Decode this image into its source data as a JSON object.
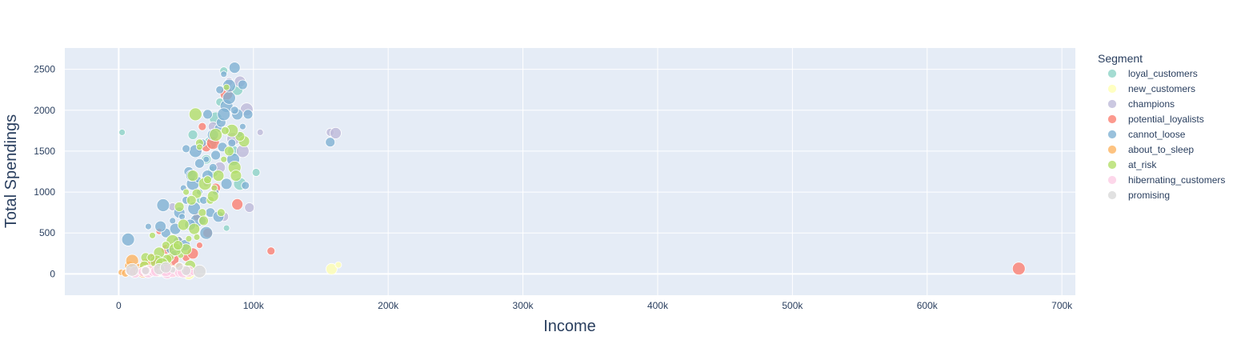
{
  "chart_data": {
    "type": "scatter",
    "title": "",
    "xlabel": "Income",
    "ylabel": "Total Spendings",
    "xlim": [
      -40000,
      710000
    ],
    "ylim": [
      -260,
      2760
    ],
    "x_ticks": [
      0,
      100000,
      200000,
      300000,
      400000,
      500000,
      600000,
      700000
    ],
    "x_tick_labels": [
      "0",
      "100k",
      "200k",
      "300k",
      "400k",
      "500k",
      "600k",
      "700k"
    ],
    "y_ticks": [
      0,
      500,
      1000,
      1500,
      2000,
      2500
    ],
    "y_tick_labels": [
      "0",
      "500",
      "1000",
      "1500",
      "2000",
      "2500"
    ],
    "grid": true,
    "plot_background": "#e5ecf6",
    "legend": {
      "title": "Segment",
      "placement": "right"
    },
    "series": [
      {
        "name": "loyal_customers",
        "color": "#8dd3c7",
        "points": [
          [
            2500,
            1730
          ],
          [
            65000,
            1400
          ],
          [
            72000,
            1900
          ],
          [
            78000,
            2480
          ],
          [
            85000,
            1500
          ],
          [
            60000,
            900
          ],
          [
            55000,
            1700
          ],
          [
            90000,
            1100
          ],
          [
            102000,
            1240
          ],
          [
            70000,
            1250
          ],
          [
            80000,
            560
          ],
          [
            45000,
            300
          ],
          [
            68000,
            1600
          ],
          [
            75000,
            2100
          ],
          [
            88000,
            2250
          ]
        ]
      },
      {
        "name": "new_customers",
        "color": "#ffffb3",
        "points": [
          [
            158000,
            60
          ],
          [
            163000,
            110
          ],
          [
            40000,
            20
          ],
          [
            52000,
            10
          ],
          [
            30000,
            15
          ]
        ]
      },
      {
        "name": "champions",
        "color": "#bebada",
        "points": [
          [
            157000,
            1730
          ],
          [
            161000,
            1720
          ],
          [
            105000,
            1730
          ],
          [
            97000,
            810
          ],
          [
            95000,
            2010
          ],
          [
            82000,
            2350
          ],
          [
            90000,
            2350
          ],
          [
            60000,
            1520
          ],
          [
            70000,
            1800
          ],
          [
            85000,
            1650
          ],
          [
            40000,
            820
          ],
          [
            75000,
            1300
          ],
          [
            65000,
            1100
          ],
          [
            78000,
            700
          ],
          [
            92000,
            1500
          ]
        ]
      },
      {
        "name": "potential_loyalists",
        "color": "#fb8072",
        "points": [
          [
            668000,
            65
          ],
          [
            113000,
            280
          ],
          [
            88000,
            850
          ],
          [
            30000,
            520
          ],
          [
            35000,
            300
          ],
          [
            40000,
            180
          ],
          [
            50000,
            200
          ],
          [
            55000,
            250
          ],
          [
            60000,
            350
          ],
          [
            65000,
            1550
          ],
          [
            70000,
            1600
          ],
          [
            62000,
            1800
          ],
          [
            28000,
            100
          ],
          [
            45000,
            420
          ],
          [
            72000,
            1050
          ],
          [
            80000,
            2200
          ],
          [
            58000,
            700
          ],
          [
            25000,
            180
          ],
          [
            48000,
            80
          ],
          [
            66000,
            500
          ]
        ]
      },
      {
        "name": "cannot_loose",
        "color": "#80b1d3",
        "points": [
          [
            157000,
            1610
          ],
          [
            7000,
            420
          ],
          [
            94000,
            1080
          ],
          [
            86000,
            2520
          ],
          [
            78000,
            2440
          ],
          [
            92000,
            2310
          ],
          [
            80000,
            2050
          ],
          [
            74000,
            1780
          ],
          [
            70000,
            1700
          ],
          [
            65000,
            1400
          ],
          [
            60000,
            1350
          ],
          [
            55000,
            1100
          ],
          [
            50000,
            900
          ],
          [
            45000,
            750
          ],
          [
            40000,
            650
          ],
          [
            35000,
            500
          ],
          [
            33000,
            840
          ],
          [
            38000,
            300
          ],
          [
            42000,
            550
          ],
          [
            48000,
            1050
          ],
          [
            52000,
            1250
          ],
          [
            57000,
            1500
          ],
          [
            62000,
            1600
          ],
          [
            66000,
            1200
          ],
          [
            72000,
            1000
          ],
          [
            76000,
            1850
          ],
          [
            82000,
            2150
          ],
          [
            84000,
            1600
          ],
          [
            88000,
            1950
          ],
          [
            90000,
            1700
          ],
          [
            68000,
            750
          ],
          [
            58000,
            650
          ],
          [
            63000,
            900
          ],
          [
            53000,
            600
          ],
          [
            47000,
            700
          ],
          [
            72000,
            1450
          ],
          [
            78000,
            1950
          ],
          [
            86000,
            2000
          ],
          [
            80000,
            1100
          ],
          [
            60000,
            1000
          ],
          [
            44000,
            400
          ],
          [
            56000,
            800
          ],
          [
            70000,
            1300
          ],
          [
            74000,
            700
          ],
          [
            92000,
            1800
          ],
          [
            96000,
            1950
          ],
          [
            65000,
            500
          ],
          [
            50000,
            1530
          ],
          [
            31000,
            580
          ],
          [
            22000,
            580
          ],
          [
            66000,
            1950
          ],
          [
            82000,
            2300
          ],
          [
            75000,
            2250
          ],
          [
            54000,
            1200
          ],
          [
            59000,
            1150
          ],
          [
            77000,
            1550
          ],
          [
            85000,
            1400
          ],
          [
            62000,
            650
          ],
          [
            49000,
            350
          ],
          [
            41000,
            250
          ]
        ]
      },
      {
        "name": "about_to_sleep",
        "color": "#fdb462",
        "points": [
          [
            2000,
            20
          ],
          [
            8000,
            100
          ],
          [
            10000,
            160
          ],
          [
            15000,
            80
          ],
          [
            20000,
            120
          ],
          [
            25000,
            60
          ],
          [
            30000,
            40
          ],
          [
            35000,
            90
          ],
          [
            40000,
            30
          ],
          [
            45000,
            70
          ],
          [
            50000,
            50
          ],
          [
            12000,
            40
          ],
          [
            18000,
            30
          ],
          [
            5000,
            10
          ]
        ]
      },
      {
        "name": "at_risk",
        "color": "#b3de69",
        "points": [
          [
            93000,
            1620
          ],
          [
            80000,
            2280
          ],
          [
            90000,
            1680
          ],
          [
            72000,
            1700
          ],
          [
            60000,
            1600
          ],
          [
            55000,
            1200
          ],
          [
            50000,
            1000
          ],
          [
            45000,
            820
          ],
          [
            40000,
            400
          ],
          [
            35000,
            350
          ],
          [
            30000,
            260
          ],
          [
            25000,
            470
          ],
          [
            20000,
            200
          ],
          [
            28000,
            150
          ],
          [
            38000,
            200
          ],
          [
            48000,
            600
          ],
          [
            52000,
            430
          ],
          [
            58000,
            980
          ],
          [
            64000,
            1100
          ],
          [
            68000,
            900
          ],
          [
            74000,
            1200
          ],
          [
            78000,
            1400
          ],
          [
            82000,
            1500
          ],
          [
            84000,
            1750
          ],
          [
            62000,
            750
          ],
          [
            56000,
            550
          ],
          [
            46000,
            230
          ],
          [
            36000,
            180
          ],
          [
            42000,
            300
          ],
          [
            66000,
            1150
          ],
          [
            70000,
            950
          ],
          [
            60000,
            1550
          ],
          [
            54000,
            900
          ],
          [
            32000,
            120
          ],
          [
            24000,
            200
          ],
          [
            50000,
            300
          ],
          [
            58000,
            450
          ],
          [
            63000,
            650
          ],
          [
            86000,
            1300
          ],
          [
            76000,
            750
          ],
          [
            87000,
            1200
          ],
          [
            71000,
            1050
          ],
          [
            44000,
            350
          ],
          [
            57000,
            1950
          ],
          [
            79000,
            1750
          ],
          [
            53000,
            100
          ],
          [
            47000,
            60
          ],
          [
            19000,
            100
          ]
        ]
      },
      {
        "name": "hibernating_customers",
        "color": "#fccde5",
        "points": [
          [
            8000,
            30
          ],
          [
            12000,
            20
          ],
          [
            15000,
            30
          ],
          [
            18000,
            25
          ],
          [
            22000,
            30
          ],
          [
            25000,
            20
          ],
          [
            28000,
            35
          ],
          [
            30000,
            25
          ],
          [
            33000,
            30
          ],
          [
            36000,
            20
          ],
          [
            38000,
            30
          ],
          [
            40000,
            25
          ],
          [
            42000,
            35
          ],
          [
            45000,
            20
          ],
          [
            48000,
            30
          ],
          [
            50000,
            25
          ],
          [
            52000,
            30
          ],
          [
            55000,
            20
          ],
          [
            20000,
            40
          ],
          [
            35000,
            45
          ]
        ]
      },
      {
        "name": "promising",
        "color": "#d9d9d9",
        "points": [
          [
            10000,
            50
          ],
          [
            20000,
            40
          ],
          [
            30000,
            60
          ],
          [
            40000,
            50
          ],
          [
            50000,
            40
          ],
          [
            60000,
            30
          ],
          [
            45000,
            90
          ],
          [
            35000,
            80
          ]
        ]
      }
    ]
  }
}
